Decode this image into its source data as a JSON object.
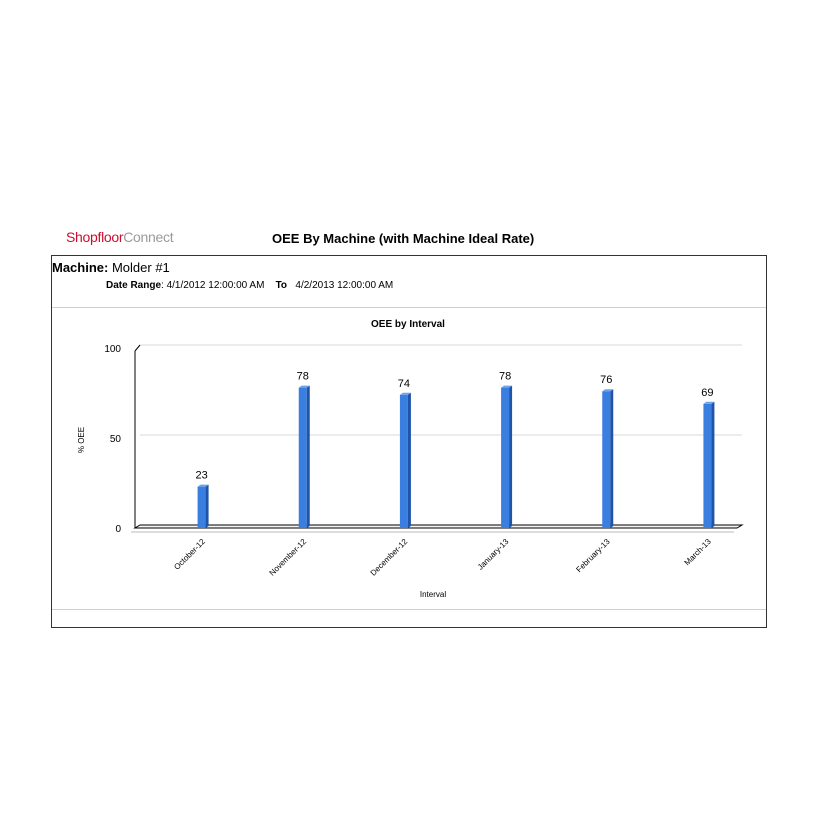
{
  "header": {
    "logo_part1": "Shopfloor",
    "logo_part2": "Connect",
    "report_title": "OEE By Machine (with Machine Ideal Rate)"
  },
  "filters": {
    "machine_label": "Machine:",
    "machine_value": "Molder #1",
    "date_range_label": "Date Range",
    "date_start": ": 4/1/2012 12:00:00 AM",
    "to_label": "To",
    "date_end": "4/2/2013 12:00:00 AM"
  },
  "chart_data": {
    "type": "bar",
    "title": "OEE by Interval",
    "xlabel": "Interval",
    "ylabel": "% OEE",
    "categories": [
      "October-12",
      "November-12",
      "December-12",
      "January-13",
      "February-13",
      "March-13"
    ],
    "values": [
      23,
      78,
      74,
      78,
      76,
      69
    ],
    "ylim": [
      0,
      100
    ],
    "yticks": [
      0,
      50,
      100
    ],
    "bar_color": "#3a7fe0",
    "bar_side_color": "#1f55a8",
    "grid": true,
    "legend": "none"
  }
}
